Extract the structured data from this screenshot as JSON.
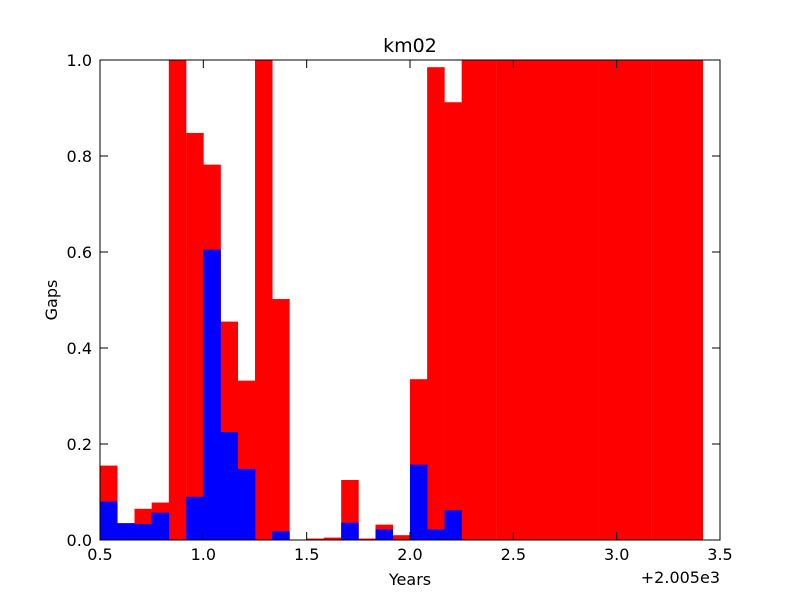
{
  "chart_data": {
    "type": "bar",
    "title": "km02",
    "xlabel": "Years",
    "ylabel": "Gaps",
    "x_offset_label": "+2.005e3",
    "xlim": [
      0.5,
      3.5
    ],
    "ylim": [
      0.0,
      1.0
    ],
    "xticks": [
      "0.5",
      "1.0",
      "1.5",
      "2.0",
      "2.5",
      "3.0",
      "3.5"
    ],
    "yticks": [
      "0.0",
      "0.2",
      "0.4",
      "0.6",
      "0.8",
      "1.0"
    ],
    "bin_width": 0.0833,
    "bin_starts": [
      0.5,
      0.583,
      0.667,
      0.75,
      0.833,
      0.917,
      1.0,
      1.083,
      1.167,
      1.25,
      1.333,
      1.417,
      1.5,
      1.583,
      1.667,
      1.75,
      1.833,
      1.917,
      2.0,
      2.083,
      2.167,
      2.25,
      2.333,
      2.417,
      2.5,
      2.583,
      2.667,
      2.75,
      2.833,
      2.917,
      3.0,
      3.083,
      3.167,
      3.25,
      3.333
    ],
    "series": [
      {
        "color": "#ff0000",
        "values": [
          0.155,
          0.035,
          0.065,
          0.078,
          1.0,
          0.848,
          0.782,
          0.455,
          0.332,
          1.0,
          0.502,
          0.0,
          0.003,
          0.005,
          0.125,
          0.003,
          0.032,
          0.01,
          0.335,
          0.985,
          0.912,
          1.0,
          1.0,
          1.0,
          1.0,
          1.0,
          1.0,
          1.0,
          1.0,
          1.0,
          1.0,
          1.0,
          1.0,
          1.0,
          1.0
        ]
      },
      {
        "color": "#0000ff",
        "values": [
          0.08,
          0.035,
          0.033,
          0.057,
          0.0,
          0.09,
          0.605,
          0.225,
          0.148,
          0.0,
          0.018,
          0.0,
          0.0,
          0.0,
          0.036,
          0.0,
          0.022,
          0.0,
          0.157,
          0.022,
          0.062,
          0.0,
          0.0,
          0.0,
          0.0,
          0.0,
          0.0,
          0.0,
          0.0,
          0.0,
          0.0,
          0.0,
          0.0,
          0.0,
          0.0
        ]
      }
    ],
    "grid": false
  }
}
